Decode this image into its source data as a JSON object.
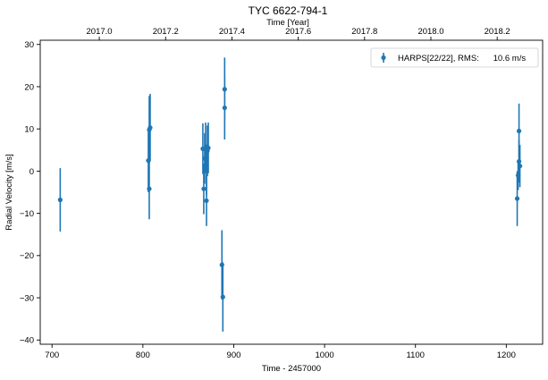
{
  "chart_data": {
    "type": "scatter",
    "title": "TYC 6622-794-1",
    "xlabel": "Time - 2457000",
    "ylabel": "Radial Velocity [m/s]",
    "top_xlabel": "Time [Year]",
    "xlim": [
      687,
      1240
    ],
    "ylim": [
      -41,
      31
    ],
    "x_ticks": [
      700,
      800,
      900,
      1000,
      1100,
      1200
    ],
    "y_ticks": [
      30,
      20,
      10,
      0,
      -10,
      -20,
      -30,
      -40
    ],
    "top_ticks": [
      {
        "year": 2017.0,
        "x": 752
      },
      {
        "year": 2017.2,
        "x": 825
      },
      {
        "year": 2017.4,
        "x": 898
      },
      {
        "year": 2017.6,
        "x": 971
      },
      {
        "year": 2017.8,
        "x": 1044
      },
      {
        "year": 2018.0,
        "x": 1117
      },
      {
        "year": 2018.2,
        "x": 1190
      }
    ],
    "top_tick_labels": [
      "2017.0",
      "2017.2",
      "2017.4",
      "2017.6",
      "2017.8",
      "2018.0",
      "2018.2"
    ],
    "legend": {
      "label": "HARPS[22/22], RMS:      10.6 m/s",
      "position": "top-right"
    },
    "grid": false,
    "color": "#1f77b4",
    "series": [
      {
        "name": "HARPS[22/22]",
        "points": [
          {
            "x": 709,
            "y": -6.8,
            "err": 7.5
          },
          {
            "x": 806,
            "y": 2.5,
            "err": 7.5
          },
          {
            "x": 807,
            "y": 9.8,
            "err": 8.0
          },
          {
            "x": 807,
            "y": -4.2,
            "err": 7.2
          },
          {
            "x": 808,
            "y": 10.3,
            "err": 8.0
          },
          {
            "x": 866,
            "y": 5.3,
            "err": 6.0
          },
          {
            "x": 867,
            "y": -4.2,
            "err": 6.0
          },
          {
            "x": 868,
            "y": 3.0,
            "err": 6.0
          },
          {
            "x": 869,
            "y": 5.5,
            "err": 6.0
          },
          {
            "x": 870,
            "y": 0.3,
            "err": 6.0
          },
          {
            "x": 870,
            "y": -7.0,
            "err": 6.0
          },
          {
            "x": 871,
            "y": 4.8,
            "err": 6.0
          },
          {
            "x": 872,
            "y": 5.5,
            "err": 6.0
          },
          {
            "x": 887,
            "y": -22.2,
            "err": 8.2
          },
          {
            "x": 888,
            "y": -29.8,
            "err": 8.2
          },
          {
            "x": 890,
            "y": 19.4,
            "err": 7.5
          },
          {
            "x": 890,
            "y": 15.0,
            "err": 7.5
          },
          {
            "x": 1212,
            "y": -6.5,
            "err": 6.5
          },
          {
            "x": 1213,
            "y": -1.0,
            "err": 3.5
          },
          {
            "x": 1214,
            "y": 9.5,
            "err": 6.5
          },
          {
            "x": 1214,
            "y": 2.3,
            "err": 5.0
          },
          {
            "x": 1215,
            "y": 1.2,
            "err": 5.0
          }
        ]
      }
    ]
  }
}
